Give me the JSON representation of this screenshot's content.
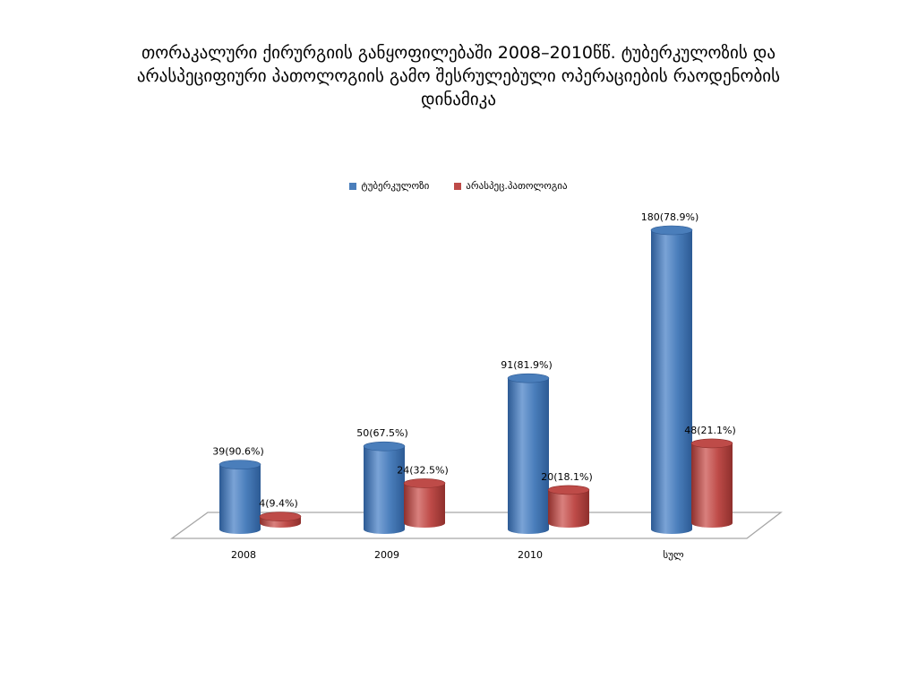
{
  "chart_data": {
    "type": "bar",
    "title_lines": [
      "თორაკალური  ქირურგიის განყოფილებაში 2008–2010წწ. ტუბერკულოზის და",
      "არასპეციფიური პათოლოგიის გამო შესრულებული ოპერაციების რაოდენობის",
      "დინამიკა"
    ],
    "categories": [
      "2008",
      "2009",
      "2010",
      "სულ"
    ],
    "series": [
      {
        "name": "ტუბერკულოზი",
        "color": "#4a7ebb",
        "values": [
          39,
          50,
          91,
          180
        ],
        "labels": [
          "39(90.6%)",
          "50(67.5%)",
          "91(81.9%)",
          "180(78.9%)"
        ]
      },
      {
        "name": "არასპეც.პათოლოგია",
        "color": "#be4b48",
        "values": [
          4,
          24,
          20,
          48
        ],
        "labels": [
          "4(9.4%)",
          "24(32.5%)",
          "20(18.1%)",
          "48(21.1%)"
        ]
      }
    ],
    "legend_position": "top",
    "style": "3d-cylinder",
    "grid": false
  }
}
